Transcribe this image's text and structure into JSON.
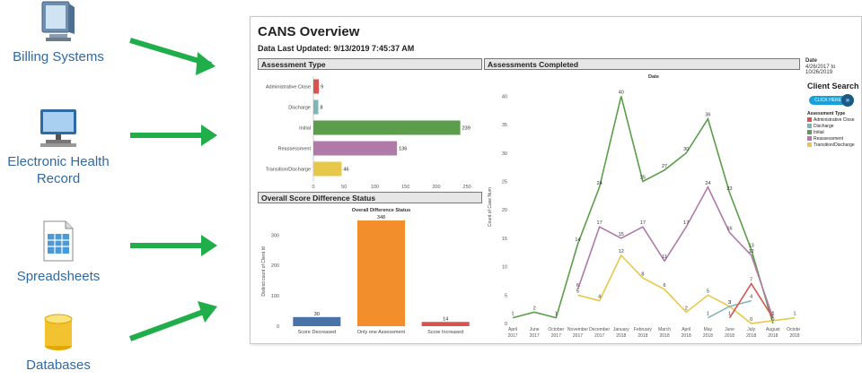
{
  "sources": [
    {
      "label": "Billing Systems",
      "icon": "computer-monitor-icon"
    },
    {
      "label": "Electronic Health Record",
      "icon": "desktop-computer-icon"
    },
    {
      "label": "Spreadsheets",
      "icon": "spreadsheet-icon"
    },
    {
      "label": "Databases",
      "icon": "database-icon"
    }
  ],
  "dashboard": {
    "title": "CANS Overview",
    "updated": "Data Last Updated: 9/13/2019 7:45:37 AM",
    "sec_assessment_type": "Assessment Type",
    "sec_score": "Overall Score Difference Status",
    "sec_completed": "Assessments Completed",
    "date_label": "Date",
    "date_range": "4/26/2017 to 10/26/2019",
    "client_search": "Client Search",
    "click_here": "CLICK HERE",
    "legend_title": "Assessment Type",
    "legend": [
      {
        "name": "Administrative Close",
        "color": "#d9534f"
      },
      {
        "name": "Discharge",
        "color": "#7fb5b5"
      },
      {
        "name": "Initial",
        "color": "#5a9e4b"
      },
      {
        "name": "Reassessment",
        "color": "#b07aa8"
      },
      {
        "name": "Transition/Discharge",
        "color": "#e8c84a"
      }
    ]
  },
  "chart_data": [
    {
      "type": "bar",
      "title": "Assessment Type",
      "categories": [
        "Administrative Close",
        "Discharge",
        "Initial",
        "Reassessment",
        "Transition/Discharge"
      ],
      "values": [
        9,
        8,
        239,
        136,
        46
      ],
      "colors": [
        "#d9534f",
        "#7fb5b5",
        "#5a9e4b",
        "#b07aa8",
        "#e8c84a"
      ],
      "xlabel": "Count of Case Num",
      "xticks": [
        0,
        50,
        100,
        150,
        200,
        250
      ],
      "xlim": [
        0,
        260
      ]
    },
    {
      "type": "bar",
      "title": "Overall Difference Status",
      "categories": [
        "Score Decreased",
        "Only one Assessment",
        "Score Increased"
      ],
      "values": [
        30,
        348,
        14
      ],
      "colors": [
        "#4a74a8",
        "#f28e2b",
        "#d9534f"
      ],
      "ylabel": "Distinct count of Client Id",
      "yticks": [
        0,
        100,
        200,
        300
      ],
      "ylim": [
        0,
        360
      ]
    },
    {
      "type": "line",
      "title": "Date",
      "ylabel": "Count of Case Num",
      "x": [
        "April 2017",
        "June 2017",
        "October 2017",
        "November 2017",
        "December 2017",
        "January 2018",
        "February 2018",
        "March 2018",
        "April 2018",
        "May 2018",
        "June 2018",
        "July 2018",
        "August 2018",
        "October 2018"
      ],
      "yticks": [
        0,
        5,
        10,
        15,
        20,
        25,
        30,
        35,
        40
      ],
      "ylim": [
        0,
        41
      ],
      "series": [
        {
          "name": "Initial",
          "color": "#5a9e4b",
          "points": [
            [
              0,
              1
            ],
            [
              1,
              2
            ],
            [
              2,
              1
            ],
            [
              3,
              14
            ],
            [
              4,
              24
            ],
            [
              5,
              40
            ],
            [
              6,
              25
            ],
            [
              7,
              27
            ],
            [
              8,
              30
            ],
            [
              9,
              36
            ],
            [
              10,
              23
            ],
            [
              11,
              13
            ],
            [
              12,
              0
            ]
          ]
        },
        {
          "name": "Reassessment",
          "color": "#b07aa8",
          "points": [
            [
              3,
              6
            ],
            [
              4,
              17
            ],
            [
              5,
              15
            ],
            [
              6,
              17
            ],
            [
              7,
              11
            ],
            [
              8,
              17
            ],
            [
              9,
              24
            ],
            [
              10,
              16
            ],
            [
              11,
              12
            ],
            [
              12,
              1
            ]
          ]
        },
        {
          "name": "Transition/Discharge",
          "color": "#e8c84a",
          "points": [
            [
              3,
              5
            ],
            [
              4,
              4
            ],
            [
              5,
              12
            ],
            [
              6,
              8
            ],
            [
              7,
              6
            ],
            [
              8,
              2
            ],
            [
              9,
              5
            ],
            [
              10,
              3
            ],
            [
              11,
              0
            ],
            [
              13,
              1
            ]
          ]
        },
        {
          "name": "Discharge",
          "color": "#7fb5b5",
          "points": [
            [
              9,
              1
            ],
            [
              10,
              3
            ],
            [
              11,
              4
            ]
          ]
        },
        {
          "name": "Administrative Close",
          "color": "#d9534f",
          "points": [
            [
              10,
              1
            ],
            [
              11,
              7
            ],
            [
              12,
              1
            ]
          ]
        }
      ],
      "labels": [
        {
          "series": 0,
          "idx": 0,
          "v": "1"
        },
        {
          "series": 0,
          "idx": 1,
          "v": "2"
        },
        {
          "series": 0,
          "idx": 2,
          "v": "1"
        },
        {
          "series": 0,
          "idx": 3,
          "v": "14"
        },
        {
          "series": 0,
          "idx": 4,
          "v": "24"
        },
        {
          "series": 0,
          "idx": 5,
          "v": "40"
        },
        {
          "series": 0,
          "idx": 6,
          "v": "25"
        },
        {
          "series": 0,
          "idx": 7,
          "v": "27"
        },
        {
          "series": 0,
          "idx": 8,
          "v": "30"
        },
        {
          "series": 0,
          "idx": 9,
          "v": "36"
        },
        {
          "series": 0,
          "idx": 10,
          "v": "23"
        },
        {
          "series": 0,
          "idx": 11,
          "v": "13"
        },
        {
          "series": 0,
          "idx": 12,
          "v": "0"
        },
        {
          "series": 1,
          "idx": 0,
          "v": "6"
        },
        {
          "series": 1,
          "idx": 1,
          "v": "17"
        },
        {
          "series": 1,
          "idx": 2,
          "v": "15"
        },
        {
          "series": 1,
          "idx": 3,
          "v": "17"
        },
        {
          "series": 1,
          "idx": 4,
          "v": "11"
        },
        {
          "series": 1,
          "idx": 5,
          "v": "17"
        },
        {
          "series": 1,
          "idx": 6,
          "v": "24"
        },
        {
          "series": 1,
          "idx": 7,
          "v": "16"
        },
        {
          "series": 1,
          "idx": 8,
          "v": "12"
        },
        {
          "series": 1,
          "idx": 9,
          "v": "1"
        },
        {
          "series": 2,
          "idx": 0,
          "v": "5"
        },
        {
          "series": 2,
          "idx": 1,
          "v": "4"
        },
        {
          "series": 2,
          "idx": 2,
          "v": "12"
        },
        {
          "series": 2,
          "idx": 3,
          "v": "8"
        },
        {
          "series": 2,
          "idx": 4,
          "v": "6"
        },
        {
          "series": 2,
          "idx": 5,
          "v": "2"
        },
        {
          "series": 2,
          "idx": 6,
          "v": "5"
        },
        {
          "series": 2,
          "idx": 7,
          "v": "3"
        },
        {
          "series": 2,
          "idx": 8,
          "v": "0"
        },
        {
          "series": 2,
          "idx": 9,
          "v": "1"
        },
        {
          "series": 3,
          "idx": 0,
          "v": "1"
        },
        {
          "series": 3,
          "idx": 1,
          "v": "3"
        },
        {
          "series": 3,
          "idx": 2,
          "v": "4"
        },
        {
          "series": 4,
          "idx": 0,
          "v": "1"
        },
        {
          "series": 4,
          "idx": 1,
          "v": "7"
        },
        {
          "series": 4,
          "idx": 2,
          "v": "1"
        }
      ]
    }
  ]
}
